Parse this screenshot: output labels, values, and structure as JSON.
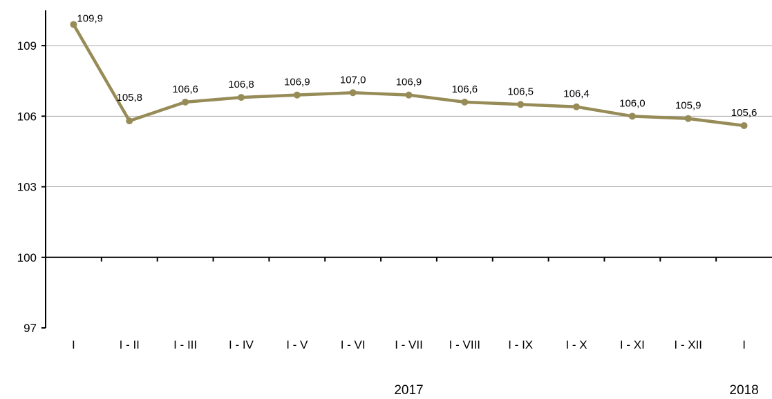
{
  "chart_data": {
    "type": "line",
    "categories": [
      "I",
      "I - II",
      "I - III",
      "I - IV",
      "I - V",
      "I - VI",
      "I - VII",
      "I - VIII",
      "I - IX",
      "I - X",
      "I - XI",
      "I - XII",
      "I"
    ],
    "values": [
      109.9,
      105.8,
      106.6,
      106.8,
      106.9,
      107.0,
      106.9,
      106.6,
      106.5,
      106.4,
      106.0,
      105.9,
      105.6
    ],
    "data_labels": [
      "109,9",
      "105,8",
      "106,6",
      "106,8",
      "106,9",
      "107,0",
      "106,9",
      "106,6",
      "106,5",
      "106,4",
      "106,0",
      "105,9",
      "105,6"
    ],
    "yticks": [
      97,
      100,
      103,
      106,
      109
    ],
    "ylim": [
      97,
      110.5
    ],
    "x_axis_crosses_at": 100,
    "year_labels": [
      {
        "text": "2017",
        "center_of": [
          1,
          11
        ]
      },
      {
        "text": "2018",
        "center_of": [
          12,
          12
        ]
      }
    ],
    "title": "",
    "xlabel": "",
    "ylabel": "",
    "grid": true,
    "legend": "none",
    "colors": {
      "line": "#978c58",
      "grid": "#a6a6a6",
      "axis": "#000000"
    }
  }
}
